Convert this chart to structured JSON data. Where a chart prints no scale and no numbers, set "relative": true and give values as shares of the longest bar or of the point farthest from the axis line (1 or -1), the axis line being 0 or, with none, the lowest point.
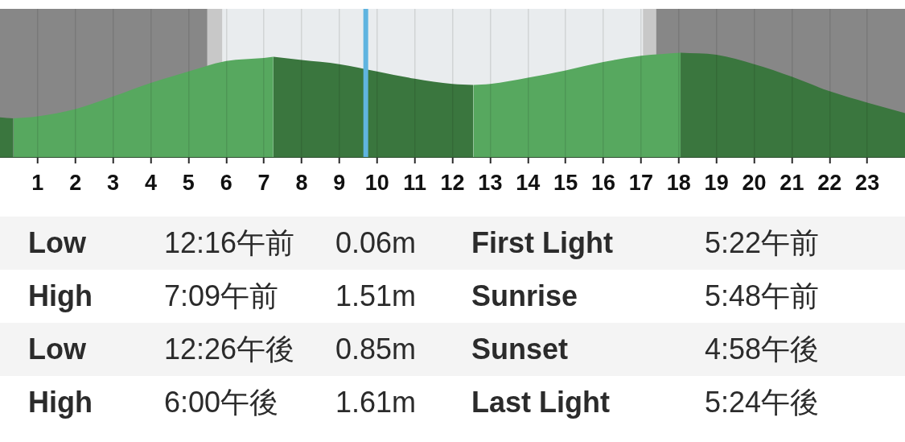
{
  "chart_data": [
    {
      "type": "area",
      "relative": true,
      "xlim": [
        0,
        24
      ],
      "xticks": [
        1,
        2,
        3,
        4,
        5,
        6,
        7,
        8,
        9,
        10,
        11,
        12,
        13,
        14,
        15,
        16,
        17,
        18,
        19,
        20,
        21,
        22,
        23
      ],
      "grid": "x",
      "series": [
        {
          "color": "#3a763e",
          "x": [
            0,
            0.35
          ],
          "values": [
            0.38,
            0.37
          ]
        },
        {
          "color": "#57a85f",
          "x": [
            0.35,
            1,
            2,
            3,
            4,
            5,
            6,
            7,
            7.25
          ],
          "values": [
            0.37,
            0.39,
            0.46,
            0.58,
            0.71,
            0.82,
            0.92,
            0.95,
            0.96
          ]
        },
        {
          "color": "#3a763e",
          "x": [
            7.25,
            8,
            9,
            10,
            11,
            12,
            12.55
          ],
          "values": [
            0.96,
            0.93,
            0.89,
            0.82,
            0.75,
            0.7,
            0.69
          ]
        },
        {
          "color": "#57a85f",
          "x": [
            12.55,
            13,
            14,
            15,
            16,
            17,
            18.05
          ],
          "values": [
            0.69,
            0.7,
            0.76,
            0.83,
            0.91,
            0.97,
            1
          ]
        },
        {
          "color": "#3a763e",
          "x": [
            18.05,
            19,
            20,
            21,
            22,
            23,
            24
          ],
          "values": [
            1,
            0.98,
            0.89,
            0.77,
            0.63,
            0.52,
            0.42
          ]
        }
      ],
      "bands": [
        {
          "axis": "x",
          "from": 0,
          "to": 5.5,
          "color": "#878787"
        },
        {
          "axis": "x",
          "from": 5.5,
          "to": 5.9,
          "color": "#c8c8c8"
        },
        {
          "axis": "x",
          "from": 5.9,
          "to": 17.05,
          "color": "#e9ecee"
        },
        {
          "axis": "x",
          "from": 17.05,
          "to": 17.4,
          "color": "#c8c8c8"
        },
        {
          "axis": "x",
          "from": 17.4,
          "to": 24,
          "color": "#878787"
        }
      ],
      "ref_lines": [
        {
          "axis": "x",
          "value": 9.7,
          "color": "#5fb4e0"
        }
      ]
    },
    {
      "type": "other",
      "annotations": [
        "Low",
        "12:16午前",
        "0.06m",
        "First Light",
        "5:22午前",
        "High",
        "7:09午前",
        "1.51m",
        "Sunrise",
        "5:48午前",
        "Low",
        "12:26午後",
        "0.85m",
        "Sunset",
        "4:58午後",
        "High",
        "6:00午後",
        "1.61m",
        "Last Light",
        "5:24午後"
      ]
    }
  ]
}
